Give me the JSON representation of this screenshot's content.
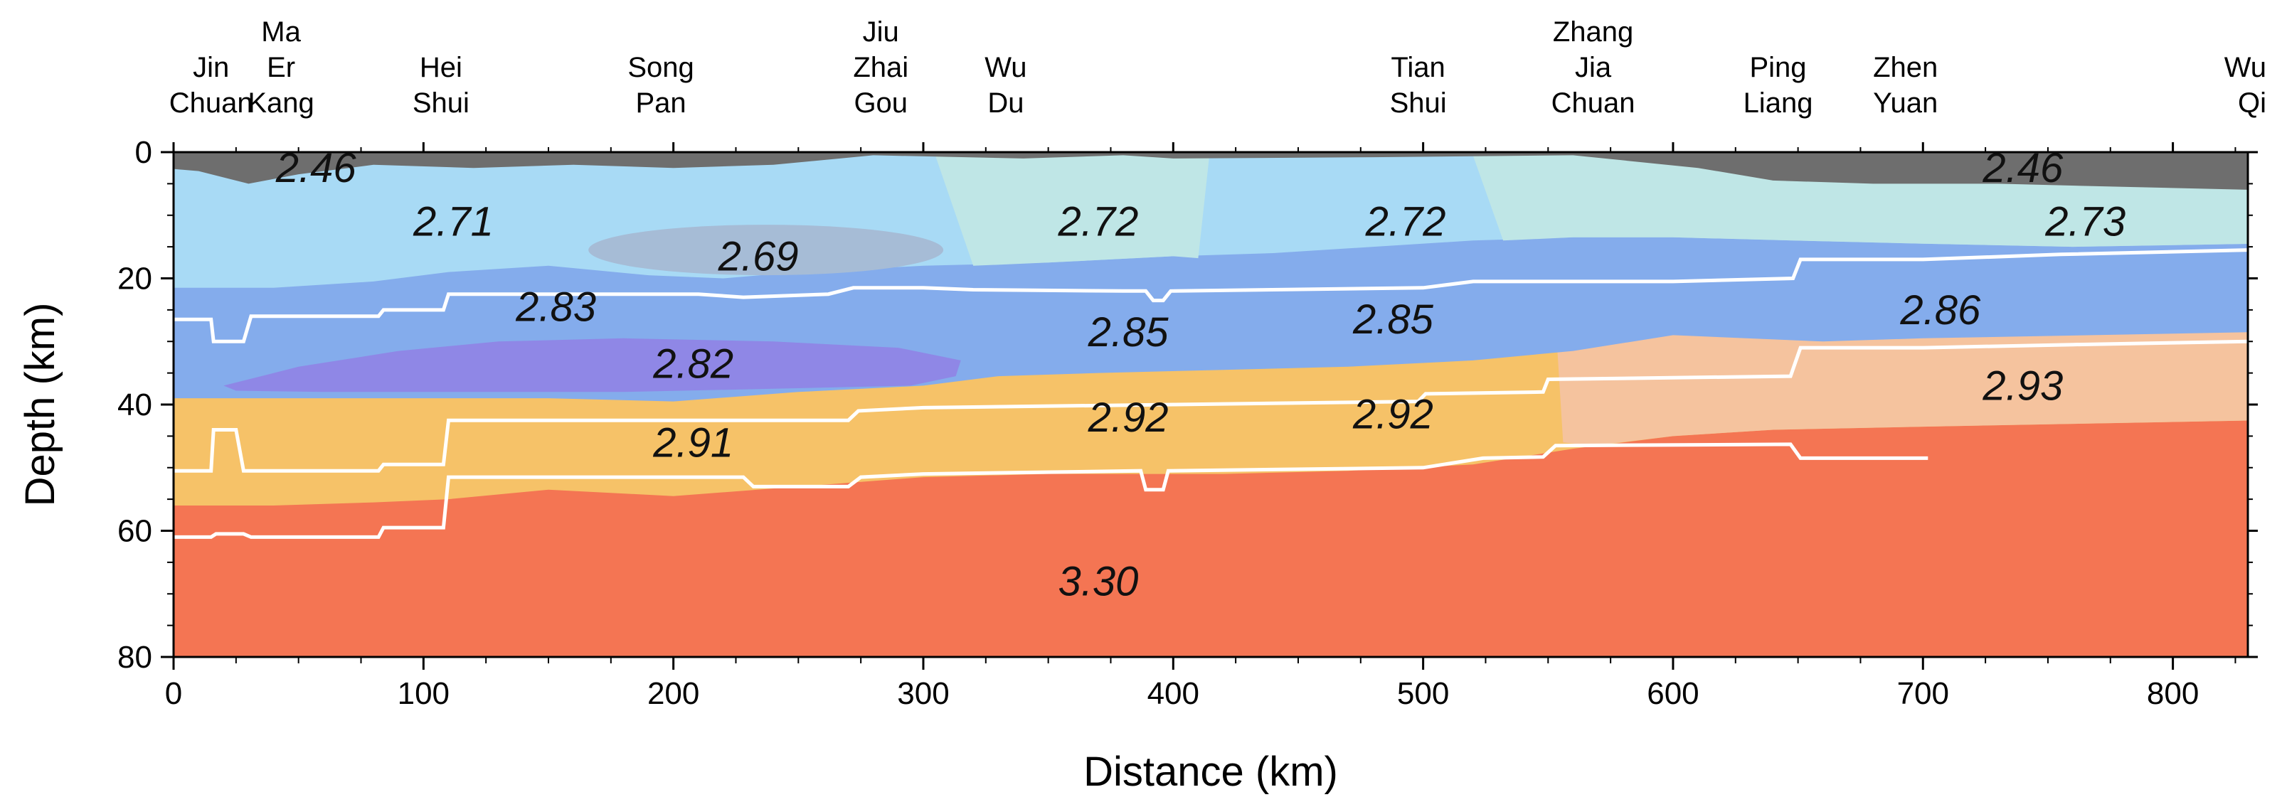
{
  "chart_data": {
    "type": "cross-section",
    "xlabel": "Distance (km)",
    "ylabel": "Depth (km)",
    "xlim": [
      0,
      830
    ],
    "ylim": [
      0,
      80
    ],
    "y_inverted": true,
    "x_ticks": [
      0,
      100,
      200,
      300,
      400,
      500,
      600,
      700,
      800
    ],
    "y_ticks": [
      0,
      20,
      40,
      60,
      80
    ],
    "stations": [
      {
        "x": 15,
        "lines": [
          "Jin",
          "Chuan"
        ]
      },
      {
        "x": 43,
        "lines": [
          "Ma",
          "Er",
          "Kang"
        ]
      },
      {
        "x": 107,
        "lines": [
          "Hei",
          "Shui"
        ]
      },
      {
        "x": 195,
        "lines": [
          "Song",
          "Pan"
        ]
      },
      {
        "x": 283,
        "lines": [
          "Jiu",
          "Zhai",
          "Gou"
        ]
      },
      {
        "x": 333,
        "lines": [
          "Wu",
          "Du"
        ]
      },
      {
        "x": 498,
        "lines": [
          "Tian",
          "Shui"
        ]
      },
      {
        "x": 568,
        "lines": [
          "Zhang",
          "Jia",
          "Chuan"
        ]
      },
      {
        "x": 642,
        "lines": [
          "Ping",
          "Liang"
        ]
      },
      {
        "x": 693,
        "lines": [
          "Zhen",
          "Yuan"
        ]
      },
      {
        "x": 825,
        "lines": [
          "Wu",
          "Qi"
        ]
      }
    ],
    "density_labels": [
      {
        "text": "2.46",
        "x": 57,
        "y": 2.5
      },
      {
        "text": "2.46",
        "x": 740,
        "y": 2.5
      },
      {
        "text": "2.71",
        "x": 112,
        "y": 11
      },
      {
        "text": "2.69",
        "x": 234,
        "y": 16.5
      },
      {
        "text": "2.72",
        "x": 370,
        "y": 11
      },
      {
        "text": "2.72",
        "x": 493,
        "y": 11
      },
      {
        "text": "2.73",
        "x": 765,
        "y": 11
      },
      {
        "text": "2.83",
        "x": 153,
        "y": 24.5
      },
      {
        "text": "2.85",
        "x": 382,
        "y": 28.5
      },
      {
        "text": "2.85",
        "x": 488,
        "y": 26.5
      },
      {
        "text": "2.86",
        "x": 707,
        "y": 25
      },
      {
        "text": "2.82",
        "x": 208,
        "y": 33.5
      },
      {
        "text": "2.91",
        "x": 208,
        "y": 46
      },
      {
        "text": "2.92",
        "x": 382,
        "y": 42
      },
      {
        "text": "2.92",
        "x": 488,
        "y": 41.5
      },
      {
        "text": "2.93",
        "x": 740,
        "y": 37
      },
      {
        "text": "3.30",
        "x": 370,
        "y": 68
      }
    ],
    "boundaries": [
      {
        "name": "boundary-1",
        "points": [
          [
            0,
            26.5
          ],
          [
            15,
            26.5
          ],
          [
            16,
            30
          ],
          [
            28,
            30
          ],
          [
            31,
            26
          ],
          [
            82,
            26
          ],
          [
            84,
            25
          ],
          [
            108,
            25
          ],
          [
            110,
            22.5
          ],
          [
            210,
            22.5
          ],
          [
            228,
            23
          ],
          [
            262,
            22.5
          ],
          [
            272,
            21.5
          ],
          [
            300,
            21.5
          ],
          [
            320,
            21.8
          ],
          [
            380,
            22
          ],
          [
            389,
            22
          ],
          [
            392,
            23.5
          ],
          [
            396,
            23.5
          ],
          [
            399,
            22
          ],
          [
            500,
            21.5
          ],
          [
            520,
            20.5
          ],
          [
            600,
            20.5
          ],
          [
            648,
            20
          ],
          [
            651,
            17
          ],
          [
            700,
            17
          ],
          [
            755,
            16.2
          ],
          [
            830,
            15.5
          ]
        ]
      },
      {
        "name": "boundary-2",
        "points": [
          [
            0,
            50.5
          ],
          [
            15,
            50.5
          ],
          [
            16,
            44
          ],
          [
            25,
            44
          ],
          [
            28,
            50.5
          ],
          [
            82,
            50.5
          ],
          [
            84,
            49.5
          ],
          [
            108,
            49.5
          ],
          [
            110,
            42.5
          ],
          [
            270,
            42.5
          ],
          [
            274,
            41
          ],
          [
            300,
            40.5
          ],
          [
            400,
            40
          ],
          [
            498,
            39.5
          ],
          [
            501,
            38.3
          ],
          [
            548,
            38
          ],
          [
            550,
            36
          ],
          [
            647,
            35.5
          ],
          [
            651,
            31
          ],
          [
            700,
            31
          ],
          [
            760,
            30.5
          ],
          [
            830,
            30
          ]
        ]
      },
      {
        "name": "boundary-3",
        "points": [
          [
            0,
            61
          ],
          [
            15,
            61
          ],
          [
            17,
            60.5
          ],
          [
            28,
            60.5
          ],
          [
            31,
            61
          ],
          [
            82,
            61
          ],
          [
            84,
            59.5
          ],
          [
            108,
            59.5
          ],
          [
            110,
            51.5
          ],
          [
            228,
            51.5
          ],
          [
            232,
            53
          ],
          [
            270,
            53
          ],
          [
            275,
            51.5
          ],
          [
            300,
            51
          ],
          [
            387,
            50.5
          ],
          [
            389,
            53.5
          ],
          [
            396,
            53.5
          ],
          [
            398,
            50.5
          ],
          [
            500,
            50
          ],
          [
            524,
            48.5
          ],
          [
            548,
            48.3
          ],
          [
            553,
            46.5
          ],
          [
            647,
            46.3
          ],
          [
            651,
            48.5
          ],
          [
            702,
            48.5
          ]
        ]
      }
    ],
    "colors": {
      "sediment": "#6e6e6e",
      "upper_crust": "#a8daf5",
      "upper_crust_east": "#bfe6e6",
      "low_velocity_lens": "#a6bcd6",
      "middle_crust": "#84acec",
      "low_density_body": "#8f87e6",
      "lower_crust": "#f6c268",
      "lower_crust_east": "#f5c39e",
      "mantle": "#f47553",
      "boundary_line": "#ffffff"
    }
  }
}
